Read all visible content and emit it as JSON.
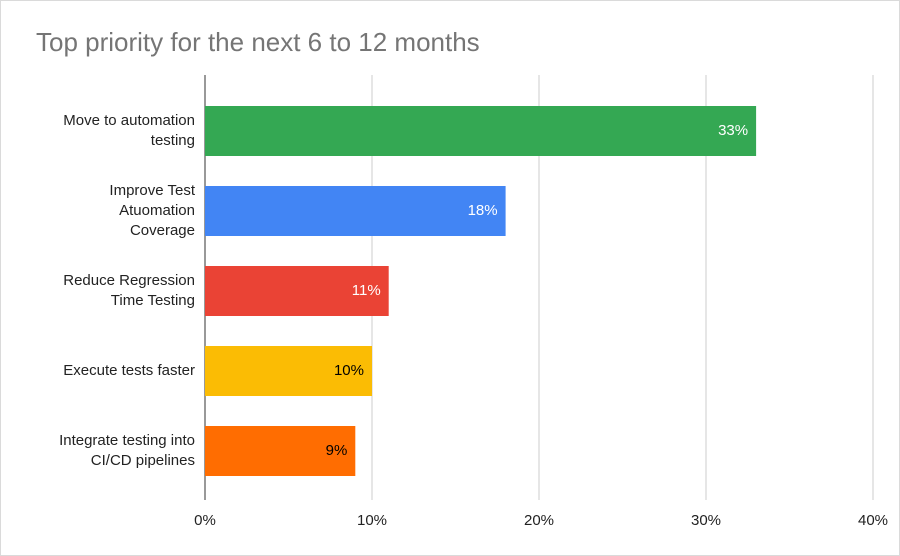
{
  "chart_data": {
    "type": "hbar",
    "title": "Top priority for the next 6 to 12 months",
    "categories": [
      "Move to automation\ntesting",
      "Improve Test\nAtuomation\nCoverage",
      "Reduce Regression\nTime Testing",
      "Execute tests faster",
      "Integrate testing into\nCI/CD pipelines"
    ],
    "values": [
      33,
      18,
      11,
      10,
      9
    ],
    "value_labels": [
      "33%",
      "18%",
      "11%",
      "10%",
      "9%"
    ],
    "colors": [
      "#34a853",
      "#4285f4",
      "#ea4335",
      "#fbbc04",
      "#ff6d01"
    ],
    "value_label_colors": [
      "#ffffff",
      "#ffffff",
      "#ffffff",
      "#000000",
      "#000000"
    ],
    "xlim": [
      0,
      40
    ],
    "xticks": [
      {
        "value": 0,
        "label": "0%"
      },
      {
        "value": 10,
        "label": "10%"
      },
      {
        "value": 20,
        "label": "20%"
      },
      {
        "value": 30,
        "label": "30%"
      },
      {
        "value": 40,
        "label": "40%"
      }
    ],
    "grid": true
  }
}
